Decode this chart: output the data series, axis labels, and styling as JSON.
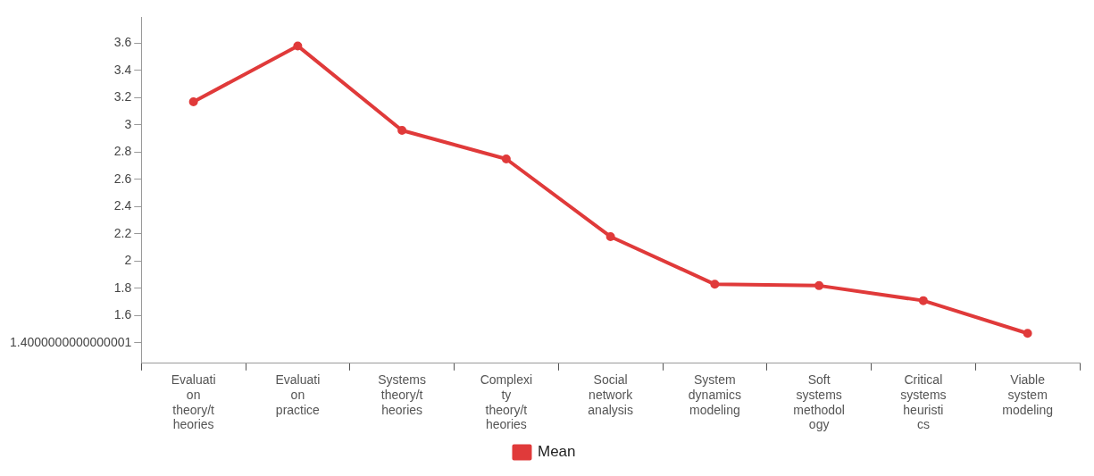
{
  "chart_data": {
    "type": "line",
    "categories": [
      "Evaluation theory/theories",
      "Evaluation practice",
      "Systems theory/theories",
      "Complexity theory/theories",
      "Social network analysis",
      "System dynamics modeling",
      "Soft systems methodology",
      "Critical systems heuristics",
      "Viable system modeling"
    ],
    "series": [
      {
        "name": "Mean",
        "color": "#e03a3a",
        "values": [
          3.17,
          3.58,
          2.96,
          2.75,
          2.18,
          1.83,
          1.82,
          1.71,
          1.47
        ]
      }
    ],
    "ylim": [
      1.25,
      3.79
    ],
    "yticks": [
      {
        "value": 1.4,
        "label": "1.4000000000000001"
      },
      1.6,
      1.8,
      2,
      2.2,
      2.4,
      2.6,
      2.8,
      3,
      3.2,
      3.4,
      3.6
    ],
    "grid": false,
    "legend": "bottom",
    "marker": "circle",
    "line_style": "solid"
  }
}
